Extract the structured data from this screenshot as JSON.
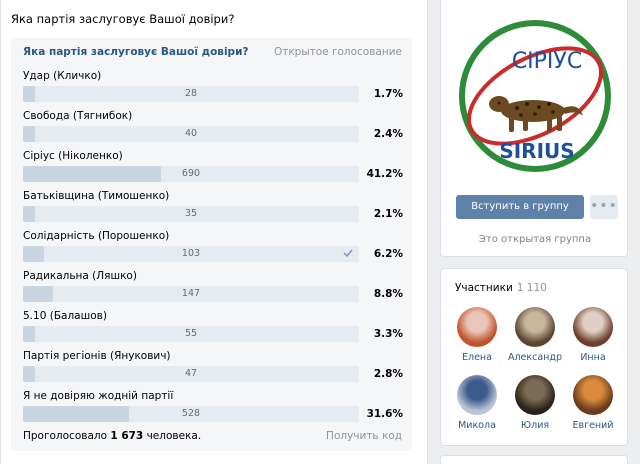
{
  "post": {
    "text": "Яка партія заслуговує Вашої довіри?"
  },
  "poll": {
    "title": "Яка партія заслуговує Вашої довіри?",
    "type_label": "Открытое голосование",
    "answers": [
      {
        "label": "Удар (Кличко)",
        "count": "28",
        "percent": "1.7%",
        "share": 1.7,
        "checked": false
      },
      {
        "label": "Свобода (Тягнибок)",
        "count": "40",
        "percent": "2.4%",
        "share": 2.4,
        "checked": false
      },
      {
        "label": "Сіріус (Ніколенко)",
        "count": "690",
        "percent": "41.2%",
        "share": 41.2,
        "checked": false
      },
      {
        "label": "Батьківщина (Тимошенко)",
        "count": "35",
        "percent": "2.1%",
        "share": 2.1,
        "checked": false
      },
      {
        "label": "Солідарність (Порошенко)",
        "count": "103",
        "percent": "6.2%",
        "share": 6.2,
        "checked": true
      },
      {
        "label": "Радикальна (Ляшко)",
        "count": "147",
        "percent": "8.8%",
        "share": 8.8,
        "checked": false
      },
      {
        "label": "5.10 (Балашов)",
        "count": "55",
        "percent": "3.3%",
        "share": 3.3,
        "checked": false
      },
      {
        "label": "Партія регіонів (Янукович)",
        "count": "47",
        "percent": "2.8%",
        "share": 2.8,
        "checked": false
      },
      {
        "label": "Я не довіряю жодній партії",
        "count": "528",
        "percent": "31.6%",
        "share": 31.6,
        "checked": false
      }
    ],
    "voted_prefix": "Проголосовало",
    "voted_count": "1 673",
    "voted_suffix": "человека.",
    "get_code": "Получить код"
  },
  "group": {
    "logo_text_top": "СІРІУС",
    "logo_text_bottom": "SIRIUS",
    "join_label": "Вступить в группу",
    "more_label": "•••",
    "open_label": "Это открытая группа"
  },
  "members": {
    "title": "Участники",
    "count": "1 110",
    "list": [
      {
        "name": "Елена"
      },
      {
        "name": "Александр"
      },
      {
        "name": "Инна"
      },
      {
        "name": "Микола"
      },
      {
        "name": "Юлия"
      },
      {
        "name": "Евгений"
      }
    ]
  },
  "colors": {
    "accent": "#2a5885",
    "button": "#5e81a8",
    "bar_bg": "#e5ebf1",
    "bar_fill": "#c9d5e1"
  }
}
